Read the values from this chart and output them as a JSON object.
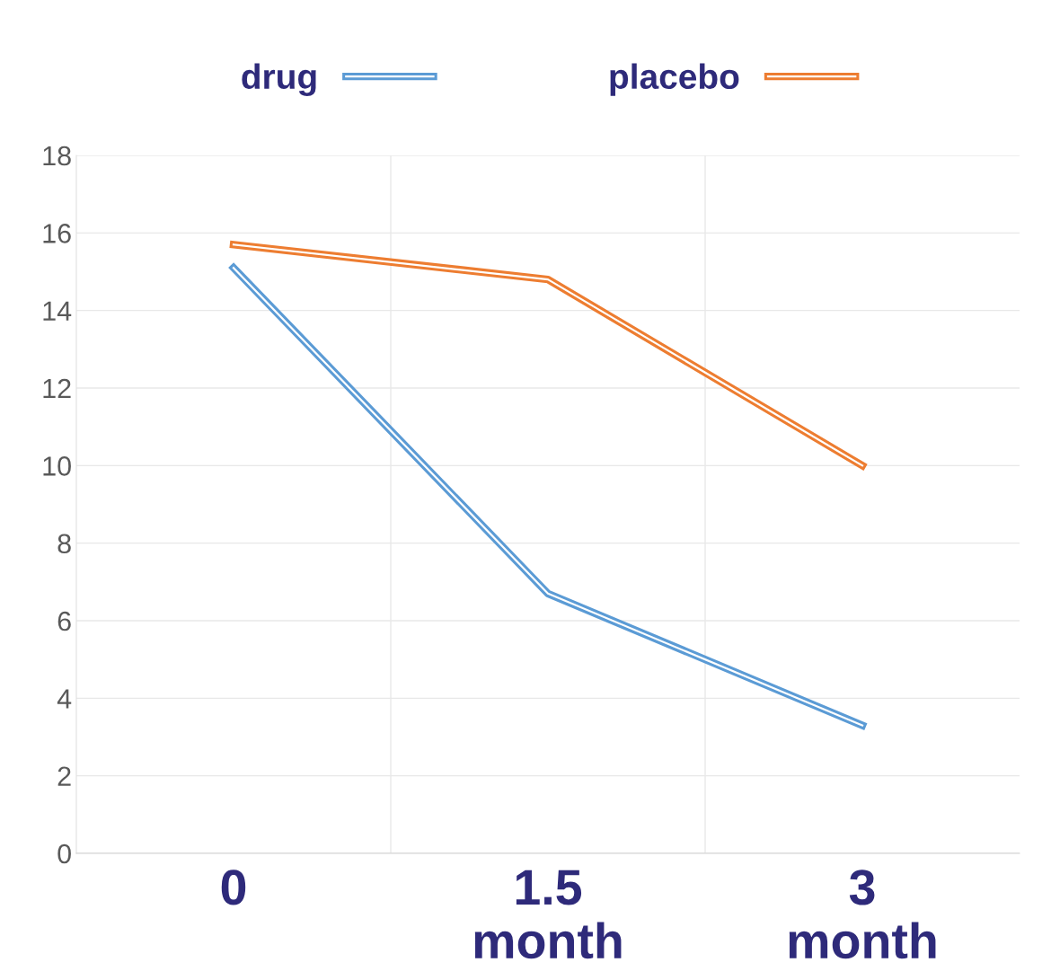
{
  "chart_data": {
    "type": "line",
    "categories": [
      "0",
      "1.5\nmonth",
      "3\nmonth"
    ],
    "series": [
      {
        "name": "drug",
        "color": "#5b9bd5",
        "values": [
          15.1,
          6.7,
          3.3
        ]
      },
      {
        "name": "placebo",
        "color": "#ed7d31",
        "values": [
          15.7,
          14.8,
          10.0
        ]
      }
    ],
    "ylim": [
      0,
      18
    ],
    "yticks": [
      0,
      2,
      4,
      6,
      8,
      10,
      12,
      14,
      16,
      18
    ],
    "grid": true,
    "legend": "top",
    "marker": "none",
    "line_style": "solid"
  }
}
